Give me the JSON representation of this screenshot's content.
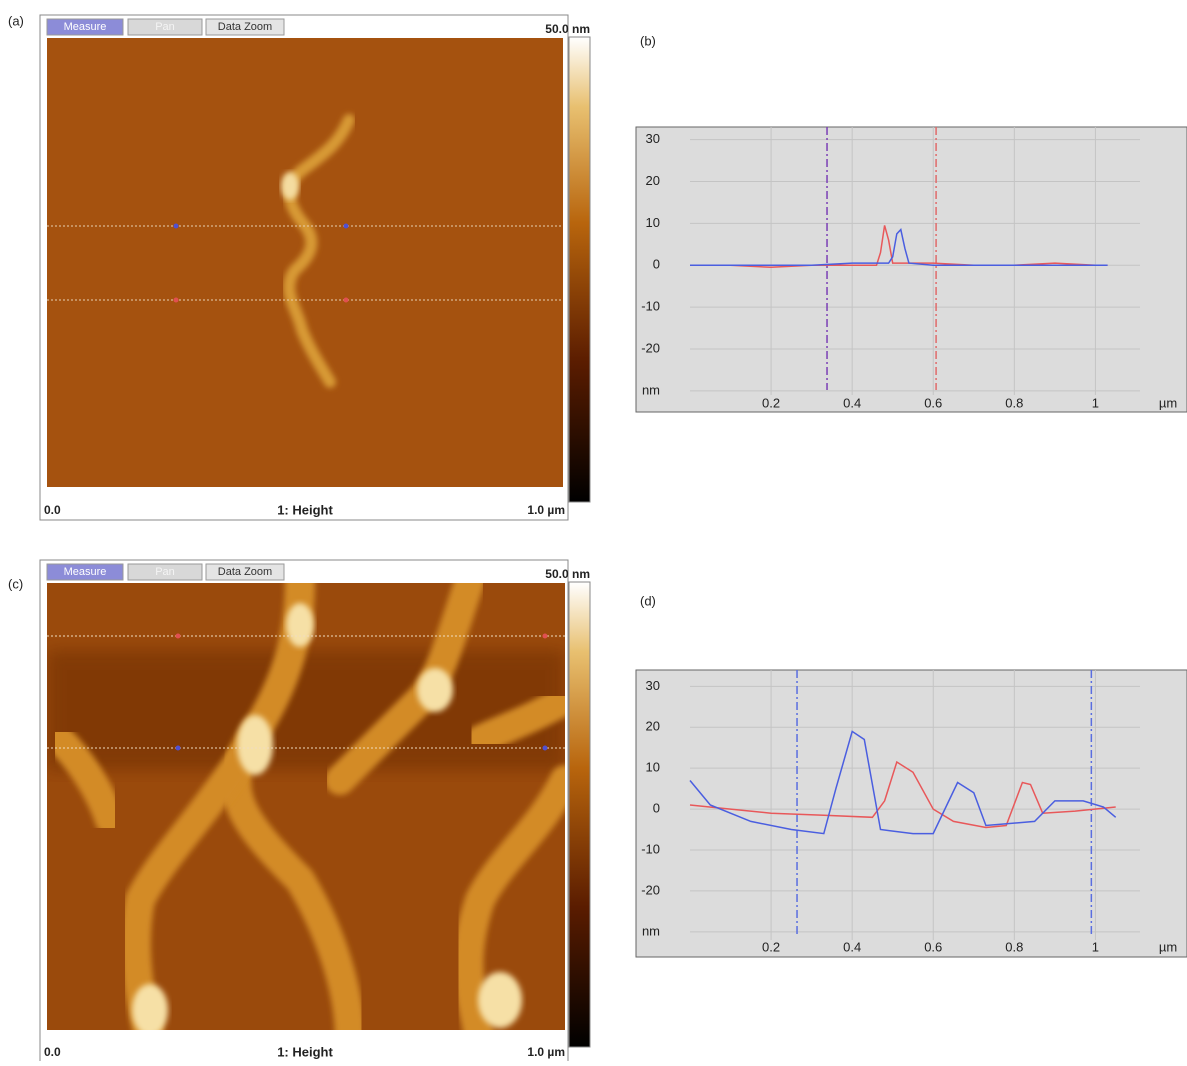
{
  "images": [
    {
      "label": "(a)",
      "buttons": [
        "Measure",
        "Pan",
        "Data Zoom"
      ],
      "scale_max": "50.0 nm",
      "x_start": "0.0",
      "channel": "1: Height",
      "x_end": "1.0 µm"
    },
    {
      "label": "(c)",
      "buttons": [
        "Measure",
        "Pan",
        "Data Zoom"
      ],
      "scale_max": "50.0 nm",
      "x_start": "0.0",
      "channel": "1: Height",
      "x_end": "1.0 µm"
    }
  ],
  "chart_data": [
    {
      "type": "line",
      "label": "(b)",
      "x_unit": "µm",
      "xlim": [
        0,
        1.11
      ],
      "xticks": [
        0.2,
        0.4,
        0.6,
        0.8,
        1
      ],
      "ylim": [
        -31,
        33
      ],
      "yticks": [
        30,
        20,
        10,
        0,
        -10,
        -20,
        {
          "value": -30,
          "label": "nm"
        }
      ],
      "grid": true,
      "cursors": [
        {
          "x": 0.338,
          "color": "#7b3fb5"
        },
        {
          "x": 0.607,
          "color": "#e06a6a"
        }
      ],
      "series": [
        {
          "color": "#e8585a",
          "x": [
            0,
            0.1,
            0.2,
            0.3,
            0.4,
            0.46,
            0.47,
            0.48,
            0.49,
            0.5,
            0.6,
            0.7,
            0.8,
            0.9,
            1.0,
            1.03
          ],
          "values": [
            0,
            0,
            -0.5,
            0,
            0,
            0,
            3,
            9.5,
            6,
            0.5,
            0.5,
            0,
            0,
            0.5,
            0,
            0
          ]
        },
        {
          "color": "#4a5ee0",
          "x": [
            0,
            0.1,
            0.2,
            0.3,
            0.4,
            0.49,
            0.5,
            0.51,
            0.52,
            0.53,
            0.54,
            0.6,
            0.7,
            0.8,
            0.9,
            1.0,
            1.03
          ],
          "values": [
            0,
            0,
            0,
            0,
            0.5,
            0.5,
            2,
            7.5,
            8.5,
            4,
            0.5,
            0,
            0,
            0,
            0,
            0,
            0
          ]
        }
      ]
    },
    {
      "type": "line",
      "label": "(d)",
      "x_unit": "µm",
      "xlim": [
        0,
        1.11
      ],
      "xticks": [
        0.2,
        0.4,
        0.6,
        0.8,
        1
      ],
      "ylim": [
        -32,
        34
      ],
      "yticks": [
        30,
        20,
        10,
        0,
        -10,
        -20,
        {
          "value": -30,
          "label": "nm"
        }
      ],
      "grid": true,
      "cursors": [
        {
          "x": 0.264,
          "color": "#5a6ee0"
        },
        {
          "x": 0.99,
          "color": "#5a6ee0"
        }
      ],
      "series": [
        {
          "color": "#e8585a",
          "x": [
            0,
            0.1,
            0.2,
            0.33,
            0.45,
            0.48,
            0.51,
            0.55,
            0.6,
            0.65,
            0.73,
            0.78,
            0.82,
            0.84,
            0.87,
            0.95,
            1.05
          ],
          "values": [
            1,
            0,
            -1,
            -1.5,
            -2,
            2,
            11.5,
            9,
            0,
            -3,
            -4.5,
            -4,
            6.5,
            6,
            -1,
            -0.5,
            0.5
          ]
        },
        {
          "color": "#4a5ee0",
          "x": [
            0,
            0.05,
            0.15,
            0.25,
            0.33,
            0.36,
            0.4,
            0.43,
            0.47,
            0.55,
            0.6,
            0.66,
            0.7,
            0.73,
            0.85,
            0.9,
            0.97,
            1.02,
            1.05
          ],
          "values": [
            7,
            1,
            -3,
            -5,
            -6,
            5,
            19,
            17,
            -5,
            -6,
            -6,
            6.5,
            4,
            -4,
            -3,
            2,
            2,
            0.5,
            -2
          ]
        }
      ]
    }
  ]
}
